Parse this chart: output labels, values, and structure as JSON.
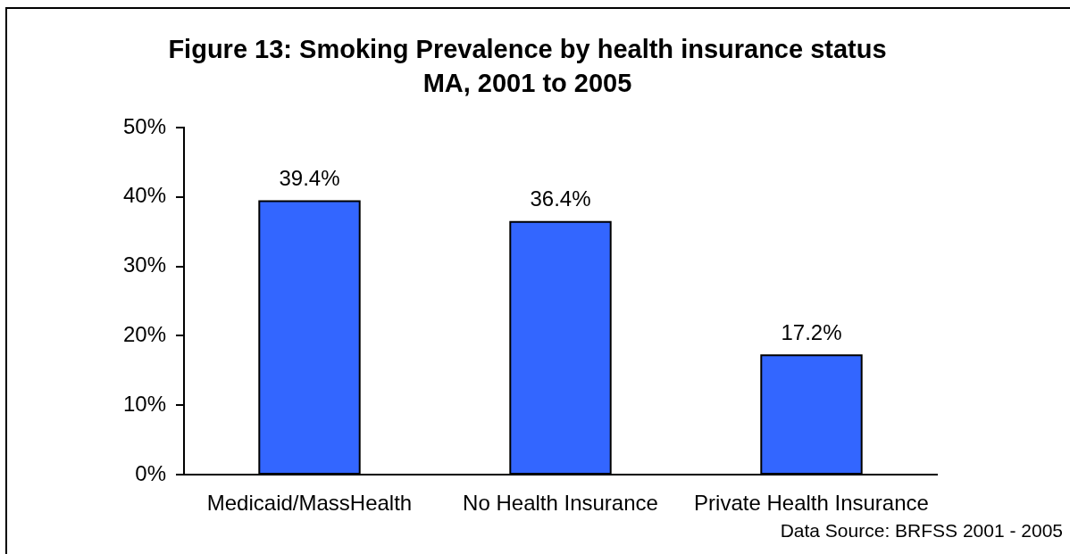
{
  "chart_data": {
    "type": "bar",
    "title": "Figure 13: Smoking Prevalence by health insurance status",
    "subtitle": "MA, 2001 to 2005",
    "categories": [
      "Medicaid/MassHealth",
      "No Health Insurance",
      "Private Health Insurance"
    ],
    "values": [
      39.4,
      36.4,
      17.2
    ],
    "color": "#3366ff",
    "value_labels": [
      "39.4%",
      "36.4%",
      "17.2%"
    ],
    "ylim": [
      0,
      50
    ],
    "yticks": [
      {
        "value": 0,
        "label": "0%"
      },
      {
        "value": 10,
        "label": "10%"
      },
      {
        "value": 20,
        "label": "20%"
      },
      {
        "value": 30,
        "label": "30%"
      },
      {
        "value": 40,
        "label": "40%"
      },
      {
        "value": 50,
        "label": "50%"
      }
    ],
    "grid": false,
    "legend": false,
    "annotations": [
      "Data Source: BRFSS 2001 - 2005"
    ]
  }
}
